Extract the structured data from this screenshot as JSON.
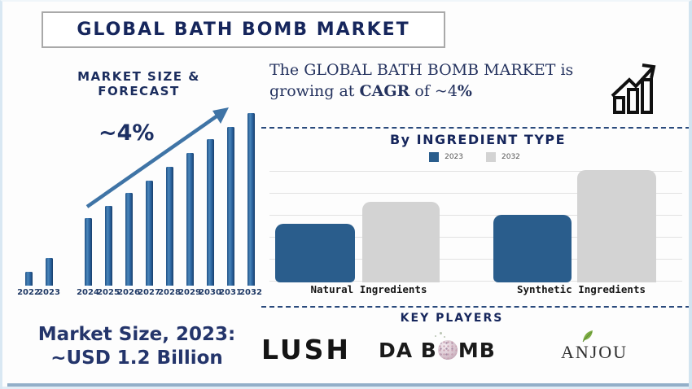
{
  "page": {
    "title": "GLOBAL BATH BOMB MARKET"
  },
  "forecast_section": {
    "heading": "MARKET SIZE & FORECAST",
    "growth_label": "~4%"
  },
  "summary": {
    "line1": "The GLOBAL BATH BOMB MARKET is",
    "line2_parts": [
      {
        "text": "growing at ",
        "bold": false
      },
      {
        "text": "CAGR",
        "bold": true
      },
      {
        "text": " of ~4",
        "bold": false
      },
      {
        "text": "%",
        "bold": true
      }
    ]
  },
  "chart_data": [
    {
      "type": "bar",
      "title": "MARKET SIZE & FORECAST",
      "categories": [
        "2022",
        "2023",
        "2024",
        "2025",
        "2026",
        "2027",
        "2028",
        "2029",
        "2030",
        "2031",
        "2032"
      ],
      "values_relative": [
        8,
        16,
        39,
        46,
        54,
        61,
        69,
        77,
        85,
        92,
        100
      ],
      "annotation": "~4%",
      "ylabel": "",
      "xlabel": "",
      "axis_labels_shown": false,
      "grid": false,
      "value_basis": "relative bar heights, 2032 = 100; market size 2023 ~USD 1.2 Billion, CAGR ~4%"
    },
    {
      "type": "bar",
      "title": "By INGREDIENT TYPE",
      "categories": [
        "Natural Ingredients",
        "Synthetic Ingredients"
      ],
      "series": [
        {
          "name": "2023",
          "values": [
            52,
            60
          ]
        },
        {
          "name": "2032",
          "values": [
            72,
            100
          ]
        }
      ],
      "grid": true,
      "legend_position": "top",
      "value_basis": "relative bar heights, tallest bar (Synthetic 2032) = 100 at top gridline"
    }
  ],
  "ingredient_section": {
    "heading": "By INGREDIENT TYPE"
  },
  "key_players": {
    "heading": "KEY PLAYERS",
    "lush": "LUSH",
    "dabomb_prefix": "DA B",
    "dabomb_suffix": "MB",
    "anjou": "ANJOU"
  },
  "market_size": {
    "line1": "Market Size, 2023:",
    "line2": "~USD 1.2 Billion"
  },
  "colors": {
    "heading_navy": "#16265c",
    "forecast_bar_blue": "#2c66a2",
    "ingredient_bar_blue": "#2a5d8c",
    "ingredient_bar_gray": "#d3d3d3",
    "arrow_blue": "#3f74a6",
    "dashed_line": "#2a4a7c"
  }
}
